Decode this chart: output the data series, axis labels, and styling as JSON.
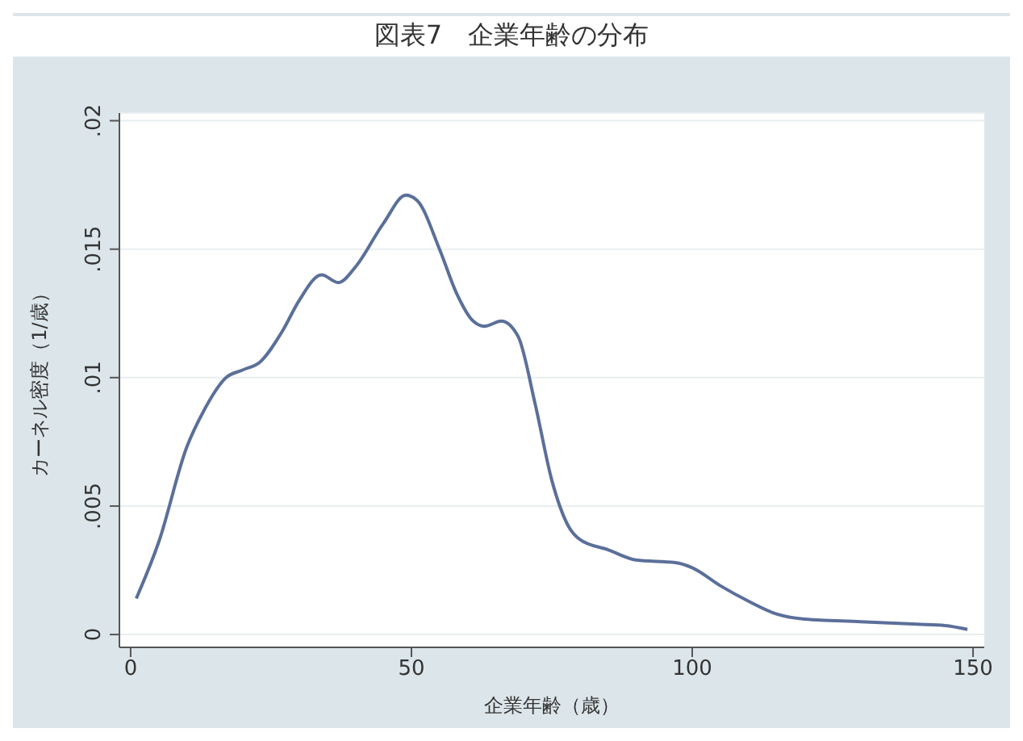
{
  "chart_data": {
    "type": "line",
    "title": "図表7　企業年齢の分布",
    "xlabel": "企業年齢（歳）",
    "ylabel": "カーネル密度（1/歳）",
    "x": [
      1,
      5,
      10,
      13,
      17,
      20,
      23,
      27,
      30,
      34,
      37,
      40,
      45,
      49,
      51,
      55,
      58,
      61,
      63,
      66,
      69,
      72,
      75,
      78,
      80,
      85,
      90,
      97,
      100,
      105,
      110,
      115,
      120,
      130,
      140,
      145,
      149
    ],
    "series": [
      {
        "color": "#5b6f9a",
        "values": [
          0.0014,
          0.0036,
          0.0073,
          0.0087,
          0.01,
          0.0103,
          0.0106,
          0.0118,
          0.013,
          0.014,
          0.0137,
          0.0143,
          0.016,
          0.0171,
          0.0169,
          0.015,
          0.0133,
          0.0122,
          0.012,
          0.0122,
          0.0116,
          0.009,
          0.006,
          0.0042,
          0.0037,
          0.0033,
          0.0029,
          0.0028,
          0.0026,
          0.0019,
          0.0013,
          0.0008,
          0.0006,
          0.0005,
          0.0004,
          0.00035,
          0.0002
        ]
      }
    ],
    "xlim": [
      -2,
      152
    ],
    "xticks": [
      0,
      50,
      100,
      150
    ],
    "ylim": [
      -0.0005,
      0.0203
    ],
    "yticks": [
      {
        "value": 0,
        "label": "0"
      },
      {
        "value": 0.005,
        "label": ".005"
      },
      {
        "value": 0.01,
        "label": ".01"
      },
      {
        "value": 0.015,
        "label": ".015"
      },
      {
        "value": 0.02,
        "label": ".02"
      }
    ],
    "grid": "y",
    "marker": "none",
    "line_style": "solid",
    "legend": false
  }
}
